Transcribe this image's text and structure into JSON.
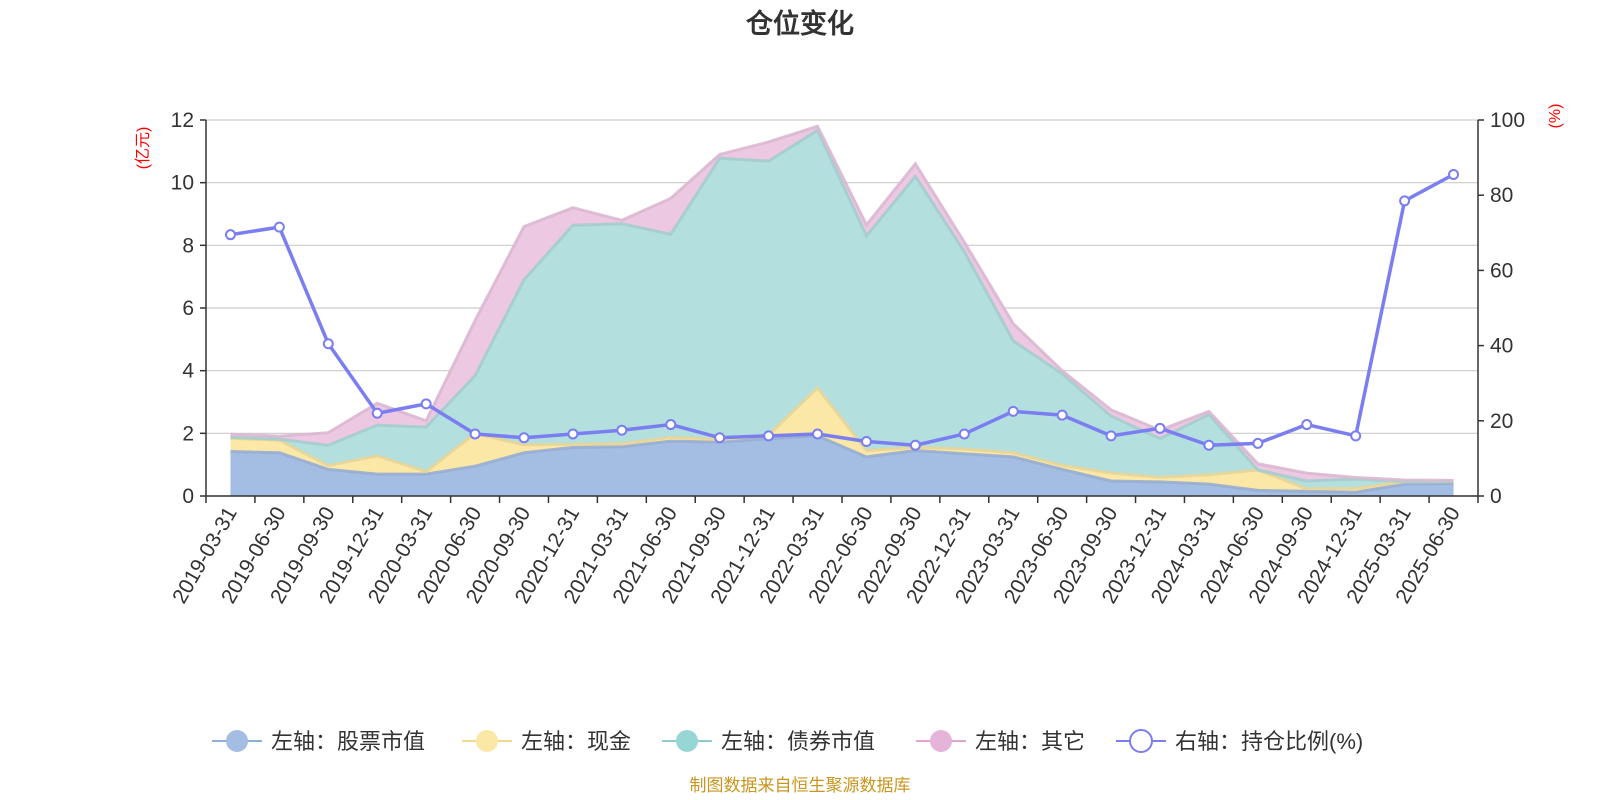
{
  "chart_data": {
    "type": "area",
    "title": "仓位变化",
    "left_axis_unit": "(亿元)",
    "right_axis_unit": "(%)",
    "left_ylim": [
      0,
      12
    ],
    "left_ticks": [
      0,
      2,
      4,
      6,
      8,
      10,
      12
    ],
    "right_ylim": [
      0,
      100
    ],
    "right_ticks": [
      0,
      20,
      40,
      60,
      80,
      100
    ],
    "grid": true,
    "legend_position": "bottom",
    "categories": [
      "2019-03-31",
      "2019-06-30",
      "2019-09-30",
      "2019-12-31",
      "2020-03-31",
      "2020-06-30",
      "2020-09-30",
      "2020-12-31",
      "2021-03-31",
      "2021-06-30",
      "2021-09-30",
      "2021-12-31",
      "2022-03-31",
      "2022-06-30",
      "2022-09-30",
      "2022-12-31",
      "2023-03-31",
      "2023-06-30",
      "2023-09-30",
      "2023-12-31",
      "2024-03-31",
      "2024-06-30",
      "2024-09-30",
      "2024-12-31",
      "2025-03-31",
      "2025-06-30"
    ],
    "stacked_series": [
      {
        "name": "左轴：股票市值",
        "axis": "left",
        "color": "#a4bde3",
        "values": [
          1.42,
          1.38,
          0.85,
          0.7,
          0.7,
          0.95,
          1.38,
          1.55,
          1.57,
          1.75,
          1.72,
          1.83,
          1.92,
          1.25,
          1.45,
          1.35,
          1.25,
          0.85,
          0.48,
          0.45,
          0.38,
          0.18,
          0.15,
          0.12,
          0.38,
          0.4
        ]
      },
      {
        "name": "左轴：现金",
        "axis": "left",
        "color": "#fbe8a6",
        "values": [
          0.42,
          0.4,
          0.12,
          0.58,
          0.08,
          1.05,
          0.25,
          0.1,
          0.1,
          0.12,
          0.08,
          0.12,
          1.53,
          0.2,
          0.1,
          0.15,
          0.13,
          0.13,
          0.25,
          0.15,
          0.3,
          0.65,
          0.08,
          0.12,
          0.08,
          0.06
        ]
      },
      {
        "name": "左轴：债券市值",
        "axis": "left",
        "color": "#b3dfdf",
        "values": [
          0.03,
          0.03,
          0.65,
          0.98,
          1.42,
          1.84,
          5.27,
          6.99,
          7.02,
          6.48,
          8.98,
          8.74,
          8.22,
          6.85,
          8.65,
          6.3,
          3.57,
          2.92,
          1.82,
          1.23,
          1.92,
          0.0,
          0.25,
          0.3,
          0.0,
          0.0
        ]
      },
      {
        "name": "左轴：其它",
        "axis": "left",
        "color": "#edc8e2",
        "values": [
          0.1,
          0.1,
          0.4,
          0.7,
          0.2,
          1.76,
          1.7,
          0.56,
          0.11,
          1.15,
          0.12,
          0.61,
          0.13,
          0.35,
          0.4,
          0.3,
          0.55,
          0.1,
          0.2,
          0.27,
          0.1,
          0.2,
          0.25,
          0.05,
          0.05,
          0.04
        ]
      }
    ],
    "line_series": {
      "name": "右轴：持仓比例(%)",
      "axis": "right",
      "color": "#7a7ef0",
      "values": [
        69.5,
        71.5,
        40.5,
        22.0,
        24.5,
        16.5,
        15.5,
        16.5,
        17.5,
        19.0,
        15.5,
        16.0,
        16.5,
        14.5,
        13.5,
        16.5,
        22.5,
        21.5,
        16.0,
        18.0,
        13.5,
        14.0,
        19.0,
        16.0,
        78.5,
        85.5
      ]
    },
    "source_note": "制图数据来自恒生聚源数据库"
  },
  "legend": [
    {
      "label": "左轴：股票市值",
      "icon": "filled-circle",
      "color": "#a4bde3",
      "line_color": "#8fb0d6"
    },
    {
      "label": "左轴：现金",
      "icon": "filled-circle",
      "color": "#fbe8a6",
      "line_color": "#f3da8a"
    },
    {
      "label": "左轴：债券市值",
      "icon": "filled-circle",
      "color": "#98d6d5",
      "line_color": "#8ccccc"
    },
    {
      "label": "左轴：其它",
      "icon": "filled-circle",
      "color": "#e6b3d9",
      "line_color": "#dca6cf"
    },
    {
      "label": "右轴：持仓比例(%)",
      "icon": "hollow-circle",
      "color": "#ffffff",
      "line_color": "#7a7ef0"
    }
  ]
}
